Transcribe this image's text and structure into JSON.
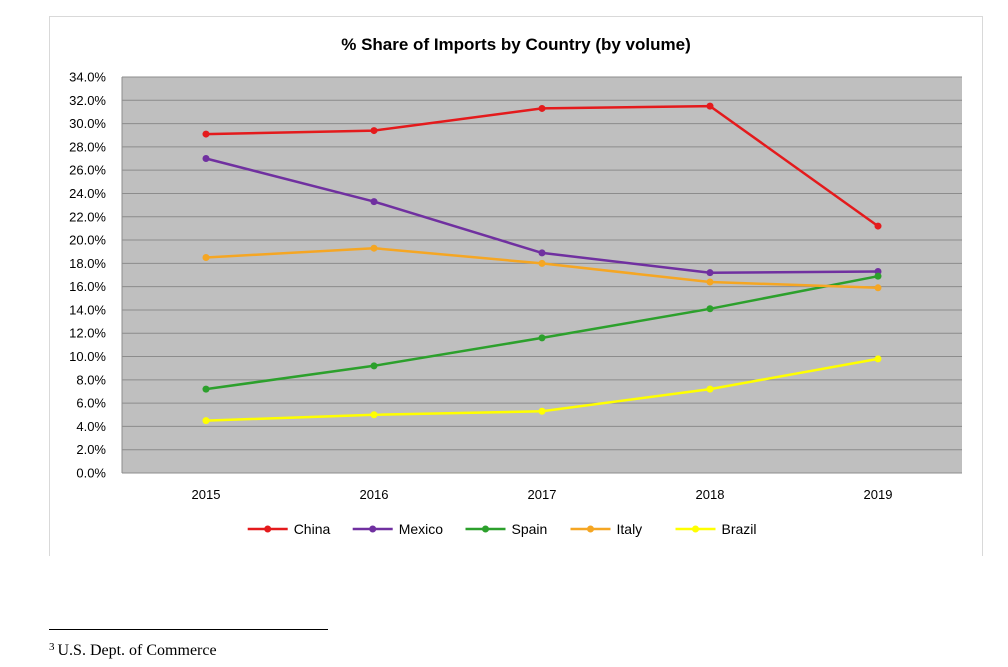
{
  "chart_data": {
    "type": "line",
    "title": "% Share of Imports by Country (by volume)",
    "xlabel": "",
    "ylabel": "",
    "categories": [
      "2015",
      "2016",
      "2017",
      "2018",
      "2019"
    ],
    "ylim": [
      0,
      34
    ],
    "y_ticks": [
      "0.0%",
      "2.0%",
      "4.0%",
      "6.0%",
      "8.0%",
      "10.0%",
      "12.0%",
      "14.0%",
      "16.0%",
      "18.0%",
      "20.0%",
      "22.0%",
      "24.0%",
      "26.0%",
      "28.0%",
      "30.0%",
      "32.0%",
      "34.0%"
    ],
    "grid": true,
    "legend_position": "bottom",
    "plot_background": "#bfbfbf",
    "series": [
      {
        "name": "China",
        "color": "#e41a1c",
        "values": [
          29.1,
          29.4,
          31.3,
          31.5,
          21.2
        ]
      },
      {
        "name": "Mexico",
        "color": "#7030a0",
        "values": [
          27.0,
          23.3,
          18.9,
          17.2,
          17.3
        ]
      },
      {
        "name": "Spain",
        "color": "#2ca02c",
        "values": [
          7.2,
          9.2,
          11.6,
          14.1,
          16.9
        ]
      },
      {
        "name": "Italy",
        "color": "#f5a623",
        "values": [
          18.5,
          19.3,
          18.0,
          16.4,
          15.9
        ]
      },
      {
        "name": "Brazil",
        "color": "#ffff00",
        "values": [
          4.5,
          5.0,
          5.3,
          7.2,
          9.8
        ]
      }
    ]
  },
  "footnote": {
    "marker": "3",
    "text": "U.S. Dept. of Commerce"
  }
}
